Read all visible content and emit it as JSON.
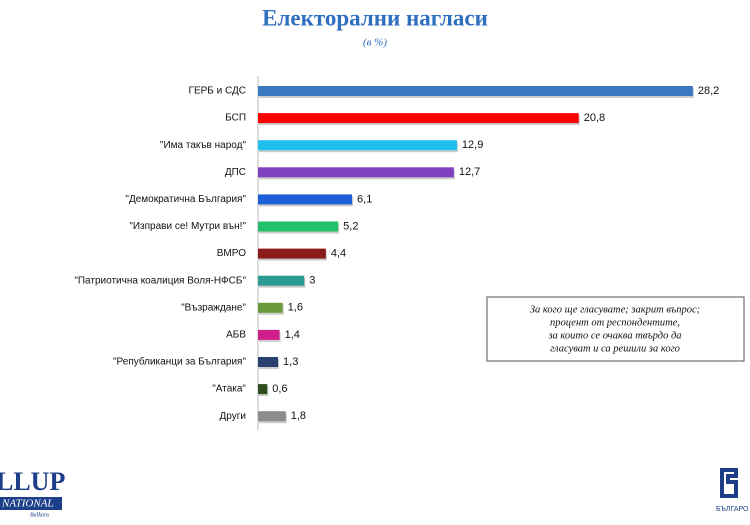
{
  "chart_data": {
    "type": "bar",
    "orientation": "horizontal",
    "title": "Електорални нагласи",
    "subtitle": "(в %)",
    "categories": [
      "ГЕРБ и СДС",
      "БСП",
      "\"Има такъв народ\"",
      "ДПС",
      "\"Демократична България\"",
      "\"Изправи се! Мутри вън!\"",
      "ВМРО",
      "\"Патриотична коалиция Воля-НФСБ\"",
      "\"Възраждане\"",
      "АБВ",
      "\"Републиканци за България\"",
      "\"Атака\"",
      "Други"
    ],
    "values": [
      28.2,
      20.8,
      12.9,
      12.7,
      6.1,
      5.2,
      4.4,
      3,
      1.6,
      1.4,
      1.3,
      0.6,
      1.8
    ],
    "value_labels": [
      "28,2",
      "20,8",
      "12,9",
      "12,7",
      "6,1",
      "5,2",
      "4,4",
      "3",
      "1,6",
      "1,4",
      "1,3",
      "0,6",
      "1,8"
    ],
    "colors": [
      "#3b78c2",
      "#ff0000",
      "#1fbff0",
      "#7f3fbf",
      "#1c5fd6",
      "#22c06a",
      "#8b1a1a",
      "#2a9a95",
      "#6b9a3a",
      "#d01f8c",
      "#2a3f6e",
      "#2f4f1f",
      "#8c8c8c"
    ],
    "note": [
      "За кого ще гласувате; закрит въпрос;",
      "процент от респондентите,",
      "за които се очаква твърдо да",
      "гласуват и са решили за кого"
    ],
    "footer_left": [
      "LLUP",
      "NATIONAL",
      "Balkans"
    ],
    "footer_right": "БЪЛГАРО"
  }
}
